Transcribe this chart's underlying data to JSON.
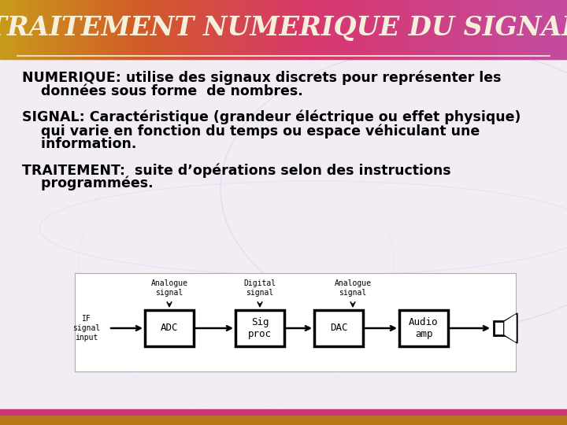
{
  "title": "TRAITEMENT NUMERIQUE DU SIGNAL",
  "title_color": "#F5F0DC",
  "title_fontsize": 24,
  "line1": "NUMERIQUE: utilise des signaux discrets pour représenter les",
  "line2": "    données sous forme  de nombres.",
  "line3": "SIGNAL: Caractéristique (grandeur éléctrique ou effet physique)",
  "line4": "    qui varie en fonction du temps ou espace véhiculant une",
  "line5": "    information.",
  "line6": "TRAITEMENT:  suite d’opérations selon des instructions",
  "line7": "    programmées.",
  "body_fontsize": 12.5,
  "body_color": "#000000",
  "diagram_boxes": [
    "ADC",
    "Sig\nproc",
    "DAC",
    "Audio\namp"
  ],
  "diagram_input_label": "IF\nsignal\ninput",
  "banner_colors": [
    [
      0.0,
      [
        200,
        155,
        25
      ]
    ],
    [
      0.25,
      [
        210,
        90,
        40
      ]
    ],
    [
      0.55,
      [
        215,
        55,
        110
      ]
    ],
    [
      1.0,
      [
        195,
        75,
        160
      ]
    ]
  ],
  "bg_color": "#F2EDF5",
  "bottom_bar1_color": "#B87818",
  "bottom_bar2_color": "#C83878"
}
